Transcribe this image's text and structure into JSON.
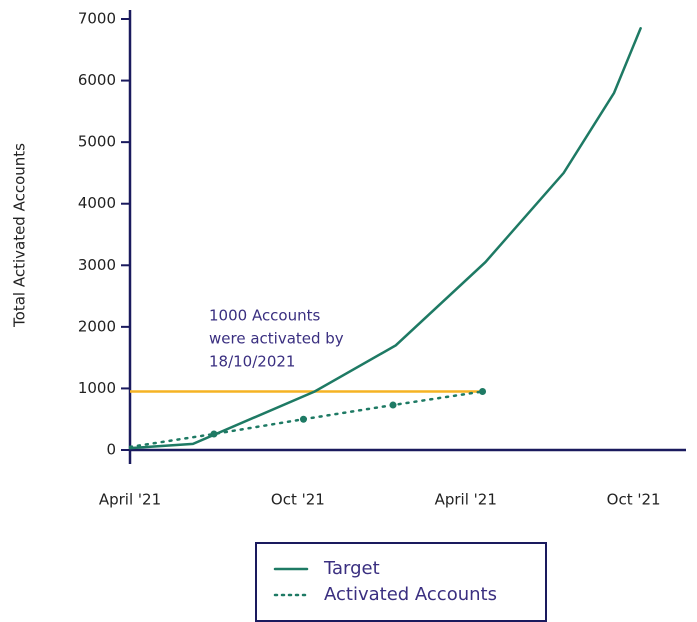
{
  "chart_data": {
    "type": "line",
    "y_label": "Total Activated Accounts",
    "x": [
      0,
      2.25,
      6.6,
      9.5,
      12.7,
      15.5,
      17.3,
      18.25
    ],
    "series": [
      {
        "name": "Target",
        "color": "#1e7a64",
        "style": "solid",
        "x": [
          0,
          2.25,
          6.6,
          9.5,
          12.7,
          15.5,
          17.3,
          18.25
        ],
        "values": [
          30,
          100,
          950,
          1700,
          3050,
          4500,
          5800,
          6850
        ]
      },
      {
        "name": "Activated Accounts",
        "color": "#1e7a64",
        "style": "dotted",
        "x": [
          0,
          3,
          6.2,
          9.4,
          12.6
        ],
        "values": [
          50,
          260,
          500,
          730,
          950
        ]
      }
    ],
    "reference_line": {
      "value": 950,
      "x": [
        0,
        12.6
      ],
      "color": "#f5b324"
    },
    "annotation": [
      "1000 Accounts",
      "were activated by",
      "18/10/2021"
    ],
    "xlim": [
      0,
      19.8
    ],
    "xticks": [
      {
        "value": 0,
        "label": "April '21"
      },
      {
        "value": 6,
        "label": "Oct '21"
      },
      {
        "value": 12,
        "label": "April '21"
      },
      {
        "value": 18,
        "label": "Oct '21"
      }
    ],
    "ylim": [
      0,
      7000
    ],
    "yticks": [
      0,
      1000,
      2000,
      3000,
      4000,
      5000,
      6000,
      7000
    ]
  }
}
